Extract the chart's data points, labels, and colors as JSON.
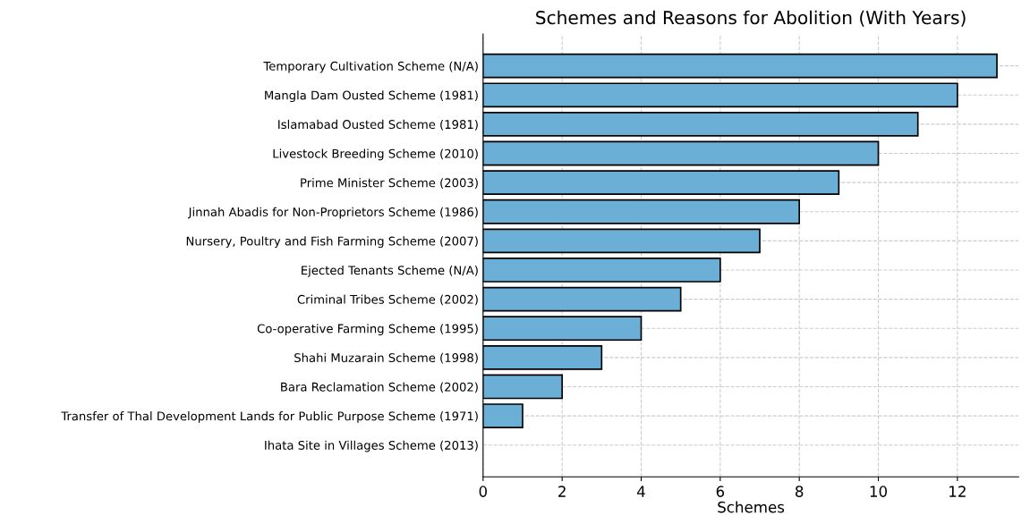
{
  "chart_data": {
    "type": "bar",
    "orientation": "horizontal",
    "title": "Schemes and Reasons for Abolition (With Years)",
    "xlabel": "Schemes",
    "categories": [
      "Temporary Cultivation Scheme (N/A)",
      "Mangla Dam Ousted Scheme (1981)",
      "Islamabad Ousted Scheme (1981)",
      "Livestock Breeding Scheme (2010)",
      "Prime Minister Scheme (2003)",
      "Jinnah Abadis for Non-Proprietors Scheme (1986)",
      "Nursery, Poultry and Fish Farming Scheme (2007)",
      "Ejected Tenants Scheme (N/A)",
      "Criminal Tribes Scheme (2002)",
      "Co-operative Farming Scheme (1995)",
      "Shahi Muzarain Scheme (1998)",
      "Bara Reclamation Scheme (2002)",
      "Transfer of Thal Development Lands for Public Purpose Scheme (1971)",
      "Ihata Site in Villages Scheme (2013)"
    ],
    "values": [
      13,
      12,
      11,
      10,
      9,
      8,
      7,
      6,
      5,
      4,
      3,
      2,
      1,
      0
    ],
    "color": "#6baed6",
    "xlim": [
      0,
      13.55
    ],
    "xticks": [
      0,
      2,
      4,
      6,
      8,
      10,
      12
    ],
    "grid": true
  }
}
